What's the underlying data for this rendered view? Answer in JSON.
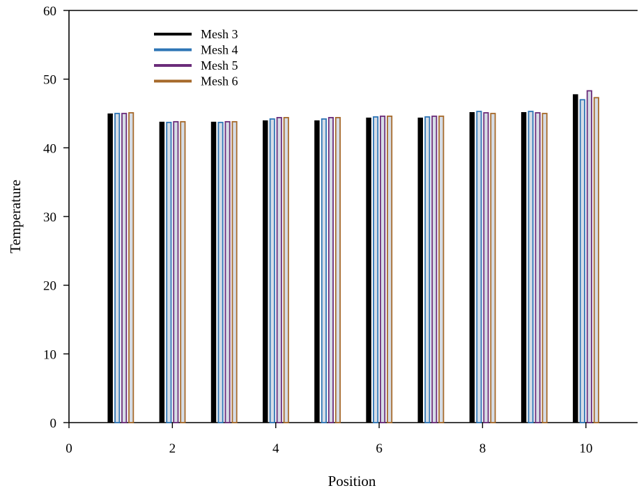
{
  "chart_data": {
    "type": "bar",
    "title": "",
    "xlabel": "Position",
    "ylabel": "Temperature",
    "xlim": [
      0,
      11
    ],
    "ylim": [
      0,
      60
    ],
    "x_ticks": [
      0,
      2,
      4,
      6,
      8,
      10
    ],
    "y_ticks": [
      0,
      10,
      20,
      30,
      40,
      50,
      60
    ],
    "grid": false,
    "legend_position": "top-left",
    "x": [
      1,
      2,
      3,
      4,
      5,
      6,
      7,
      8,
      9,
      10
    ],
    "series": [
      {
        "name": "Mesh 3",
        "color": "#000000",
        "values": [
          45.0,
          43.8,
          43.8,
          44.0,
          44.0,
          44.4,
          44.4,
          45.2,
          45.2,
          47.8
        ]
      },
      {
        "name": "Mesh 4",
        "color": "#2e75b6",
        "values": [
          45.0,
          43.7,
          43.7,
          44.2,
          44.2,
          44.5,
          44.5,
          45.3,
          45.3,
          47.0
        ]
      },
      {
        "name": "Mesh 5",
        "color": "#6b2c7a",
        "values": [
          45.0,
          43.8,
          43.8,
          44.4,
          44.4,
          44.6,
          44.6,
          45.1,
          45.1,
          48.3
        ]
      },
      {
        "name": "Mesh 6",
        "color": "#a6692a",
        "values": [
          45.1,
          43.8,
          43.8,
          44.4,
          44.4,
          44.6,
          44.6,
          45.0,
          45.0,
          47.3
        ]
      }
    ]
  }
}
